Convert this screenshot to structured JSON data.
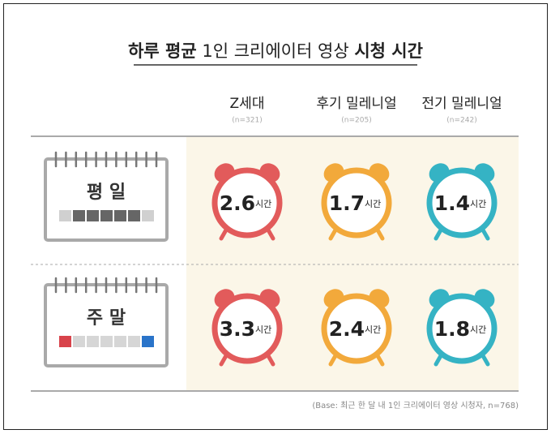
{
  "title": {
    "bold_start": "하루 평균",
    "middle": " 1인 크리에이터 영상 ",
    "bold_end": "시청 시간"
  },
  "unit": "시간",
  "columns": [
    {
      "name": "Z세대",
      "n": "(n=321)",
      "color": "#e25b5b"
    },
    {
      "name": "후기 밀레니얼",
      "n": "(n=205)",
      "color": "#f2a93b"
    },
    {
      "name": "전기 밀레니얼",
      "n": "(n=242)",
      "color": "#35b3c4"
    }
  ],
  "rows": [
    {
      "label": "평 일",
      "values": [
        2.6,
        1.7,
        1.4
      ]
    },
    {
      "label": "주 말",
      "values": [
        3.3,
        2.4,
        1.8
      ]
    }
  ],
  "note": "(Base: 최근 한 달 내 1인 크리에이터 영상 시청자, n=768)"
}
